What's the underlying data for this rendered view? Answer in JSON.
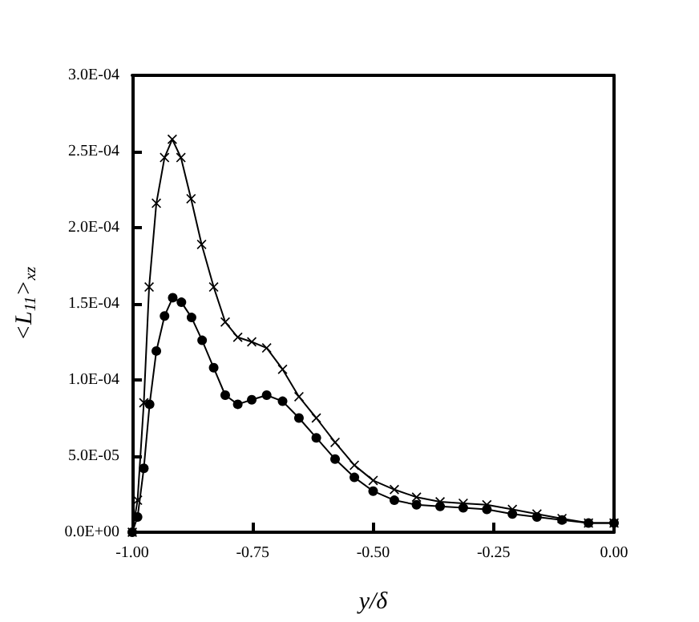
{
  "chart_data": {
    "type": "line",
    "xlabel": "y/δ",
    "ylabel": "<L$_{11}$>$_{xz}$",
    "xlim": [
      -1,
      0
    ],
    "xticks": [
      {
        "value": -1,
        "label": "-1.00"
      },
      {
        "value": -0.75,
        "label": "-0.75"
      },
      {
        "value": -0.5,
        "label": "-0.50"
      },
      {
        "value": -0.25,
        "label": "-0.25"
      },
      {
        "value": 0,
        "label": "0.00"
      }
    ],
    "ylim": [
      0,
      0.0003
    ],
    "yticks": [
      {
        "value": 0,
        "label": "0.0E+00"
      },
      {
        "value": 5e-05,
        "label": "5.0E-05"
      },
      {
        "value": 0.0001,
        "label": "1.0E-04"
      },
      {
        "value": 0.00015,
        "label": "1.5E-04"
      },
      {
        "value": 0.0002,
        "label": "2.0E-04"
      },
      {
        "value": 0.00025,
        "label": "2.5E-04"
      },
      {
        "value": 0.0003,
        "label": "3.0E-04"
      }
    ],
    "grid": false,
    "line_style": "solid",
    "series": [
      {
        "color": "#000000",
        "marker": "circle",
        "x": [
          -1,
          -0.989,
          -0.976,
          -0.964,
          -0.95,
          -0.933,
          -0.916,
          -0.898,
          -0.877,
          -0.855,
          -0.831,
          -0.807,
          -0.781,
          -0.752,
          -0.721,
          -0.688,
          -0.654,
          -0.618,
          -0.579,
          -0.539,
          -0.5,
          -0.456,
          -0.41,
          -0.361,
          -0.313,
          -0.264,
          -0.211,
          -0.16,
          -0.108,
          -0.053,
          0
        ],
        "values": [
          0,
          1e-05,
          4.2e-05,
          8.4e-05,
          0.000119,
          0.000142,
          0.000154,
          0.000151,
          0.000141,
          0.000126,
          0.000108,
          9e-05,
          8.4e-05,
          8.7e-05,
          9e-05,
          8.6e-05,
          7.5e-05,
          6.2e-05,
          4.8e-05,
          3.6e-05,
          2.7e-05,
          2.1e-05,
          1.8e-05,
          1.7e-05,
          1.6e-05,
          1.5e-05,
          1.2e-05,
          1e-05,
          8e-06,
          6e-06,
          6e-06
        ]
      },
      {
        "color": "#000000",
        "marker": "cross",
        "x": [
          -1,
          -0.989,
          -0.976,
          -0.965,
          -0.95,
          -0.933,
          -0.917,
          -0.899,
          -0.878,
          -0.856,
          -0.831,
          -0.807,
          -0.781,
          -0.752,
          -0.721,
          -0.688,
          -0.654,
          -0.618,
          -0.579,
          -0.539,
          -0.5,
          -0.456,
          -0.41,
          -0.361,
          -0.313,
          -0.264,
          -0.211,
          -0.16,
          -0.108,
          -0.053,
          0
        ],
        "values": [
          0,
          2.1e-05,
          8.5e-05,
          0.000161,
          0.000216,
          0.000246,
          0.000258,
          0.000246,
          0.000219,
          0.000189,
          0.000161,
          0.000138,
          0.000128,
          0.000125,
          0.000121,
          0.000107,
          8.9e-05,
          7.5e-05,
          5.9e-05,
          4.4e-05,
          3.4e-05,
          2.8e-05,
          2.3e-05,
          2e-05,
          1.9e-05,
          1.8e-05,
          1.5e-05,
          1.2e-05,
          9e-06,
          6e-06,
          6e-06
        ]
      }
    ]
  }
}
